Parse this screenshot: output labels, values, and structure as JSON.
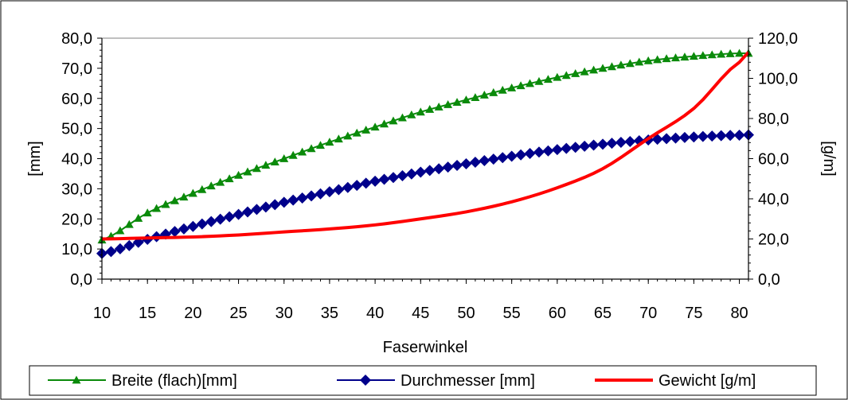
{
  "chart_data": {
    "type": "line",
    "xlabel": "Faserwinkel",
    "ylabel_left": "[mm]",
    "ylabel_right": "[g/m]",
    "xlim": [
      10,
      81
    ],
    "x_ticks": [
      10,
      15,
      20,
      25,
      30,
      35,
      40,
      45,
      50,
      55,
      60,
      65,
      70,
      75,
      80
    ],
    "ylim_left": [
      0,
      80
    ],
    "y_ticks_left": [
      "0,0",
      "10,0",
      "20,0",
      "30,0",
      "40,0",
      "50,0",
      "60,0",
      "70,0",
      "80,0"
    ],
    "ylim_right": [
      0,
      120
    ],
    "y_ticks_right": [
      "0,0",
      "20,0",
      "40,0",
      "60,0",
      "80,0",
      "100,0",
      "120,0"
    ],
    "grid": false,
    "legend_position": "bottom",
    "x": [
      10,
      15,
      20,
      25,
      30,
      35,
      40,
      45,
      50,
      55,
      60,
      65,
      70,
      75,
      80,
      81
    ],
    "series": [
      {
        "name": "Breite (flach)[mm]",
        "axis": "left",
        "color": "#0a8a0a",
        "marker": "triangle",
        "values": [
          13.0,
          22.0,
          28.5,
          34.5,
          40.0,
          45.5,
          50.5,
          55.5,
          59.5,
          63.5,
          67.0,
          70.0,
          72.5,
          74.0,
          75.0,
          75.0
        ]
      },
      {
        "name": "Durchmesser [mm]",
        "axis": "left",
        "color": "#00008b",
        "marker": "diamond",
        "values": [
          8.5,
          13.2,
          17.5,
          21.5,
          25.5,
          29.0,
          32.5,
          35.5,
          38.3,
          40.8,
          43.0,
          44.8,
          46.2,
          47.2,
          47.8,
          47.9
        ]
      },
      {
        "name": "Gewicht [g/m]",
        "axis": "right",
        "color": "#ff0000",
        "marker": "none",
        "values": [
          20.0,
          20.5,
          21.0,
          22.0,
          23.5,
          25.0,
          27.0,
          30.0,
          33.5,
          38.5,
          45.5,
          55.0,
          70.0,
          85.0,
          108.0,
          113.0
        ]
      }
    ]
  }
}
